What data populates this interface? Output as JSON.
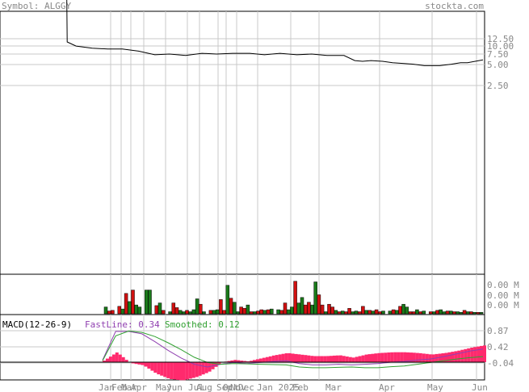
{
  "header": {
    "symbol_text": "Symbol: ALGGY",
    "site": "stockta.com"
  },
  "colors": {
    "grid": "#c8c8c8",
    "price_line": "#000000",
    "volume_up": "#1a7a1a",
    "volume_down": "#d01010",
    "macd_fast": "#9040b0",
    "macd_smooth": "#30a030",
    "macd_hist": "#ff2a6d",
    "text_gray": "#888888"
  },
  "chart_data": [
    {
      "type": "line",
      "name": "price-panel",
      "scale": "log",
      "yticks": [
        "12.50",
        "10.00",
        "7.50",
        "5.00",
        "2.50"
      ],
      "ytick_values": [
        12.5,
        10,
        7.5,
        5,
        2.5
      ],
      "xticks": [
        "Jan",
        "Feb",
        "Mar",
        "Apr",
        "May",
        "Jun",
        "Jul",
        "Aug",
        "Sep",
        "Oct",
        "Nov",
        "Dec",
        "Jan 2025",
        "Feb",
        "Mar",
        "Apr",
        "May",
        "Jun"
      ],
      "x_date_range": [
        "2024-01-01",
        "2025-06-30"
      ],
      "x": [
        "2024-01-08",
        "2024-01-20",
        "2024-02-10",
        "2024-03-01",
        "2024-03-20",
        "2024-04-10",
        "2024-05-01",
        "2024-05-20",
        "2024-06-10",
        "2024-07-01",
        "2024-07-20",
        "2024-08-10",
        "2024-09-01",
        "2024-09-20",
        "2024-10-10",
        "2024-11-01",
        "2024-11-20",
        "2024-12-10",
        "2025-01-01",
        "2025-01-15",
        "2025-01-25",
        "2025-02-05",
        "2025-02-20",
        "2025-03-05",
        "2025-03-20",
        "2025-04-01",
        "2025-04-15",
        "2025-04-25",
        "2025-05-05",
        "2025-05-20",
        "2025-06-01",
        "2025-06-10",
        "2025-06-20",
        "2025-06-30"
      ],
      "y": [
        95,
        8.6,
        8.3,
        8.2,
        8.2,
        7.9,
        7.4,
        7.5,
        7.3,
        7.6,
        7.5,
        7.6,
        7.6,
        7.4,
        7.6,
        7.4,
        7.5,
        7.3,
        7.3,
        6.6,
        6.5,
        6.6,
        6.5,
        6.3,
        6.2,
        6.1,
        5.9,
        5.9,
        5.9,
        6.1,
        6.3,
        6.3,
        6.5,
        6.7
      ]
    },
    {
      "type": "bar",
      "name": "volume-panel",
      "yticks": [
        "0.00 M",
        "0.00 M",
        "0.00 M"
      ],
      "values": [
        1,
        0.4,
        0.5,
        0,
        1.1,
        0.7,
        3,
        1.8,
        3.5,
        1.3,
        1,
        0,
        3.5,
        3.5,
        0,
        1.2,
        1.6,
        0.5,
        0,
        0.3,
        1.6,
        0.9,
        0.5,
        0.3,
        0.5,
        0.3,
        0.6,
        2.2,
        1.4,
        0.3,
        0,
        0.5,
        0.5,
        0.6,
        2.1,
        0.5,
        4.2,
        2.3,
        1.7,
        0.3,
        1,
        0.8,
        1.3,
        0.3,
        0.3,
        0.4,
        0.6,
        0.5,
        0.6,
        0.7,
        0,
        0.6,
        0.5,
        1.6,
        0.6,
        1,
        4.8,
        1.6,
        2.4,
        1.3,
        1.7,
        1.3,
        4.7,
        2.8,
        1.3,
        0.3,
        1.4,
        1,
        0.5,
        0.3,
        0.4,
        0.3,
        0.8,
        0.3,
        0.4,
        0.3,
        1.1,
        0.5,
        0.5,
        0.4,
        0.6,
        0.3,
        0.4,
        0,
        0.4,
        0.6,
        0.5,
        1.1,
        1.4,
        1,
        0.3,
        0.3,
        0.6,
        0.3,
        0.4,
        0,
        0.3,
        0.3,
        0.5,
        0.6,
        0.3,
        0.4,
        0.4,
        0.3,
        0.3,
        0.2,
        0.5,
        0.3,
        0.3,
        0.2,
        0.2,
        0.2
      ],
      "up": [
        1,
        0,
        0,
        0,
        0,
        1,
        0,
        1,
        0,
        1,
        1,
        0,
        1,
        1,
        0,
        0,
        1,
        0,
        0,
        1,
        0,
        0,
        1,
        1,
        0,
        1,
        1,
        1,
        0,
        1,
        0,
        0,
        1,
        1,
        0,
        0,
        1,
        0,
        1,
        1,
        0,
        0,
        1,
        0,
        1,
        0,
        0,
        1,
        0,
        1,
        0,
        1,
        0,
        0,
        1,
        1,
        0,
        1,
        1,
        0,
        0,
        1,
        1,
        0,
        0,
        1,
        0,
        0,
        1,
        0,
        1,
        0,
        0,
        1,
        1,
        0,
        0,
        1,
        0,
        1,
        0,
        0,
        1,
        0,
        1,
        0,
        1,
        0,
        1,
        1,
        0,
        0,
        1,
        0,
        1,
        1,
        0,
        1,
        0,
        1,
        1,
        0,
        1,
        0,
        1,
        1,
        0,
        1,
        0,
        1,
        0,
        1
      ]
    },
    {
      "type": "line",
      "name": "macd-panel",
      "label": "MACD(12-26-9)",
      "fast_label": "FastLine: 0.34",
      "smooth_label": "Smoothed: 0.12",
      "yticks": [
        "0.87",
        "0.42",
        "-0.04"
      ],
      "ytick_values": [
        0.87,
        0.42,
        -0.04
      ],
      "series": [
        {
          "name": "FastLine",
          "values": [
            0.02,
            0.85,
            0.85,
            0.78,
            0.55,
            0.3,
            0.08,
            -0.1,
            -0.18,
            -0.1,
            -0.05,
            -0.08,
            -0.05,
            -0.02,
            0.0,
            -0.08,
            -0.12,
            -0.12,
            -0.1,
            -0.12,
            -0.1,
            -0.08,
            -0.04,
            -0.02,
            0.02,
            0.05,
            0.12,
            0.2,
            0.28,
            0.34
          ]
        },
        {
          "name": "Smoothed",
          "values": [
            0.0,
            0.72,
            0.86,
            0.82,
            0.7,
            0.52,
            0.32,
            0.1,
            -0.05,
            -0.1,
            -0.08,
            -0.09,
            -0.1,
            -0.11,
            -0.12,
            -0.18,
            -0.2,
            -0.2,
            -0.19,
            -0.18,
            -0.2,
            -0.2,
            -0.17,
            -0.15,
            -0.1,
            -0.05,
            0.0,
            0.05,
            0.09,
            0.12
          ]
        }
      ]
    }
  ]
}
